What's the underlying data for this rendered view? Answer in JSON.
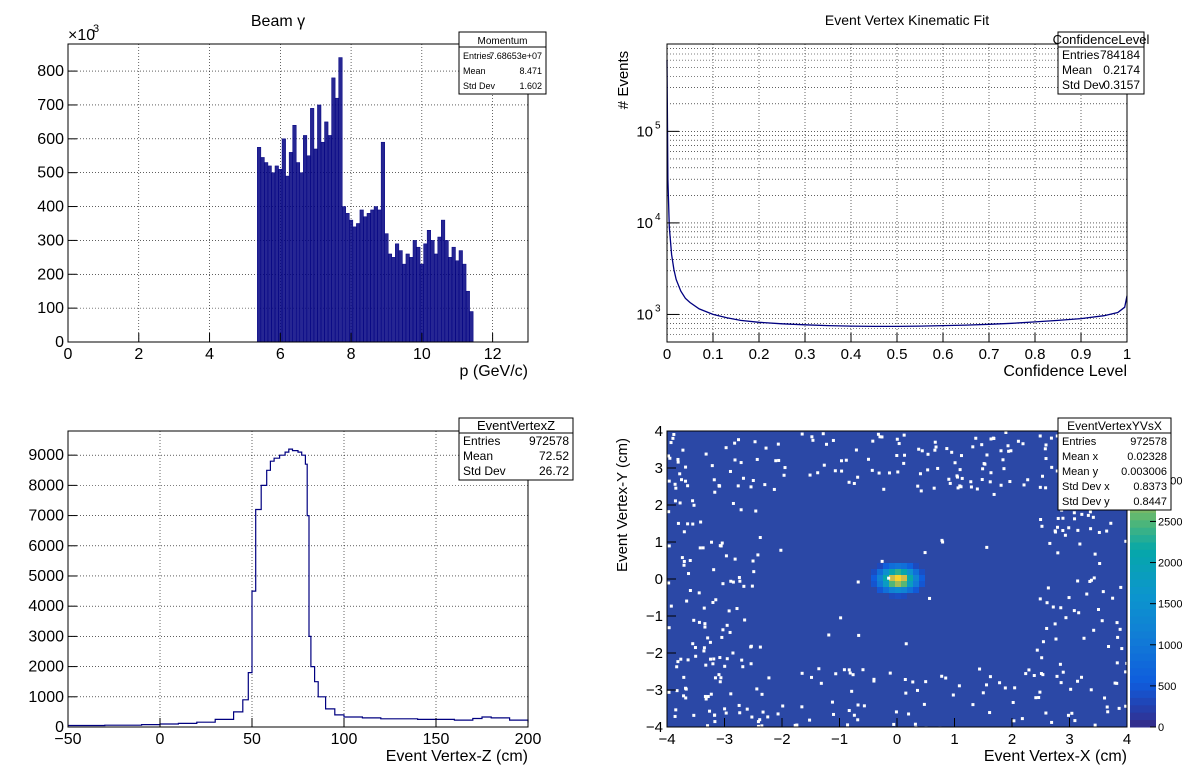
{
  "chart_data": [
    {
      "type": "bar",
      "title": "Beam γ",
      "xlabel": "p (GeV/c)",
      "ylabel": "",
      "y_exponent_label": "×10",
      "y_exponent_sup": "3",
      "xlim": [
        0,
        13
      ],
      "ylim": [
        0,
        880
      ],
      "xticks": [
        0,
        2,
        4,
        6,
        8,
        10,
        12
      ],
      "yticks": [
        0,
        100,
        200,
        300,
        400,
        500,
        600,
        700,
        800
      ],
      "stats": {
        "title": "Momentum",
        "rows": [
          [
            "Entries",
            "7.68653e+07"
          ],
          [
            "Mean",
            "8.471"
          ],
          [
            "Std Dev",
            "1.602"
          ]
        ]
      },
      "x": [
        5.4,
        5.5,
        5.6,
        5.7,
        5.8,
        5.9,
        6.0,
        6.1,
        6.2,
        6.3,
        6.4,
        6.5,
        6.6,
        6.7,
        6.8,
        6.9,
        7.0,
        7.1,
        7.2,
        7.3,
        7.4,
        7.5,
        7.6,
        7.7,
        7.8,
        7.9,
        8.0,
        8.1,
        8.2,
        8.3,
        8.4,
        8.5,
        8.6,
        8.7,
        8.8,
        8.9,
        9.0,
        9.1,
        9.2,
        9.3,
        9.4,
        9.5,
        9.6,
        9.7,
        9.8,
        9.9,
        10.0,
        10.1,
        10.2,
        10.3,
        10.4,
        10.5,
        10.6,
        10.7,
        10.8,
        10.9,
        11.0,
        11.1,
        11.2,
        11.3,
        11.4
      ],
      "values": [
        575,
        545,
        530,
        520,
        500,
        520,
        510,
        600,
        490,
        560,
        640,
        530,
        500,
        610,
        550,
        690,
        570,
        700,
        590,
        650,
        610,
        780,
        720,
        840,
        400,
        380,
        360,
        340,
        350,
        390,
        370,
        380,
        390,
        400,
        390,
        590,
        320,
        260,
        250,
        290,
        270,
        230,
        260,
        250,
        300,
        280,
        230,
        290,
        330,
        300,
        260,
        310,
        360,
        300,
        250,
        280,
        240,
        270,
        230,
        150,
        90
      ]
    },
    {
      "type": "line",
      "title": "Event Vertex Kinematic Fit",
      "xlabel": "Confidence Level",
      "ylabel": "# Events",
      "log_y": true,
      "xlim": [
        0,
        1
      ],
      "ylim": [
        500,
        900000
      ],
      "xticks": [
        0,
        0.1,
        0.2,
        0.3,
        0.4,
        0.5,
        0.6,
        0.7,
        0.8,
        0.9,
        1
      ],
      "xtick_labels": [
        "0",
        "0.1",
        "0.2",
        "0.3",
        "0.4",
        "0.5",
        "0.6",
        "0.7",
        "0.8",
        "0.9",
        "1"
      ],
      "yticks": [
        1000,
        10000,
        100000
      ],
      "ytick_base": "10",
      "ytick_exps": [
        "3",
        "4",
        "5"
      ],
      "stats": {
        "title": "ConfidenceLevel",
        "rows": [
          [
            "Entries",
            "784184"
          ],
          [
            "Mean",
            "0.2174"
          ],
          [
            "Std Dev",
            "0.3157"
          ]
        ]
      },
      "x": [
        0.0,
        0.002,
        0.005,
        0.01,
        0.015,
        0.02,
        0.03,
        0.04,
        0.05,
        0.07,
        0.1,
        0.13,
        0.16,
        0.2,
        0.25,
        0.3,
        0.35,
        0.4,
        0.45,
        0.5,
        0.55,
        0.6,
        0.65,
        0.7,
        0.75,
        0.8,
        0.85,
        0.9,
        0.95,
        0.98,
        0.995,
        1.0
      ],
      "values": [
        600000,
        30000,
        9000,
        4500,
        3100,
        2400,
        1800,
        1500,
        1350,
        1150,
        1000,
        920,
        860,
        820,
        790,
        770,
        755,
        745,
        740,
        740,
        745,
        755,
        765,
        780,
        800,
        830,
        860,
        900,
        970,
        1050,
        1200,
        1600
      ]
    },
    {
      "type": "line",
      "title": "",
      "xlabel": "Event Vertex-Z (cm)",
      "ylabel": "",
      "xlim": [
        -50,
        200
      ],
      "ylim": [
        0,
        9800
      ],
      "xticks": [
        -50,
        0,
        50,
        100,
        150,
        200
      ],
      "yticks": [
        0,
        1000,
        2000,
        3000,
        4000,
        5000,
        6000,
        7000,
        8000,
        9000
      ],
      "stats": {
        "title": "EventVertexZ",
        "rows": [
          [
            "Entries",
            "972578"
          ],
          [
            "Mean",
            "72.52"
          ],
          [
            "Std Dev",
            "26.72"
          ]
        ]
      },
      "x": [
        -50,
        -30,
        -10,
        0,
        10,
        20,
        30,
        40,
        45,
        48,
        50,
        52,
        55,
        58,
        60,
        62,
        65,
        68,
        70,
        72,
        75,
        77,
        79,
        80,
        81,
        82,
        84,
        86,
        90,
        95,
        100,
        110,
        120,
        140,
        160,
        170,
        175,
        180,
        190,
        200
      ],
      "values": [
        50,
        60,
        80,
        100,
        120,
        160,
        250,
        500,
        900,
        1800,
        4500,
        7200,
        8000,
        8500,
        8800,
        8900,
        9000,
        9100,
        9200,
        9150,
        9100,
        9000,
        8700,
        7000,
        3000,
        2000,
        1500,
        1000,
        600,
        400,
        330,
        300,
        270,
        250,
        230,
        280,
        330,
        300,
        230,
        150
      ]
    },
    {
      "type": "heatmap",
      "title": "",
      "xlabel": "Event Vertex-X (cm)",
      "ylabel": "Event Vertex-Y (cm)",
      "xlim": [
        -4,
        4
      ],
      "ylim": [
        -4,
        4
      ],
      "xticks": [
        -4,
        -3,
        -2,
        -1,
        0,
        1,
        2,
        3,
        4
      ],
      "yticks": [
        -4,
        -3,
        -2,
        -1,
        0,
        1,
        2,
        3,
        4
      ],
      "xtick_labels": [
        "−4",
        "−3",
        "−2",
        "−1",
        "0",
        "1",
        "2",
        "3",
        "4"
      ],
      "ytick_labels": [
        "−4",
        "−3",
        "−2",
        "−1",
        "0",
        "1",
        "2",
        "3",
        "4"
      ],
      "zlim": [
        0,
        3600
      ],
      "zticks": [
        0,
        500,
        1000,
        1500,
        2000,
        2500,
        3000
      ],
      "ztick_labels": [
        "0",
        "500",
        "1000",
        "1500",
        "2000",
        "2500",
        "3000"
      ],
      "stats": {
        "title": "EventVertexYVsX",
        "rows": [
          [
            "Entries",
            "972578"
          ],
          [
            "Mean x",
            "0.02328"
          ],
          [
            "Mean y",
            "0.003006"
          ],
          [
            "Std Dev x",
            "0.8373"
          ],
          [
            "Std Dev y",
            "0.8447"
          ]
        ]
      },
      "core": {
        "mean_x": 0.02,
        "mean_y": 0.0,
        "sigma": 0.22,
        "peak": 3400
      },
      "background_level": 300
    }
  ]
}
